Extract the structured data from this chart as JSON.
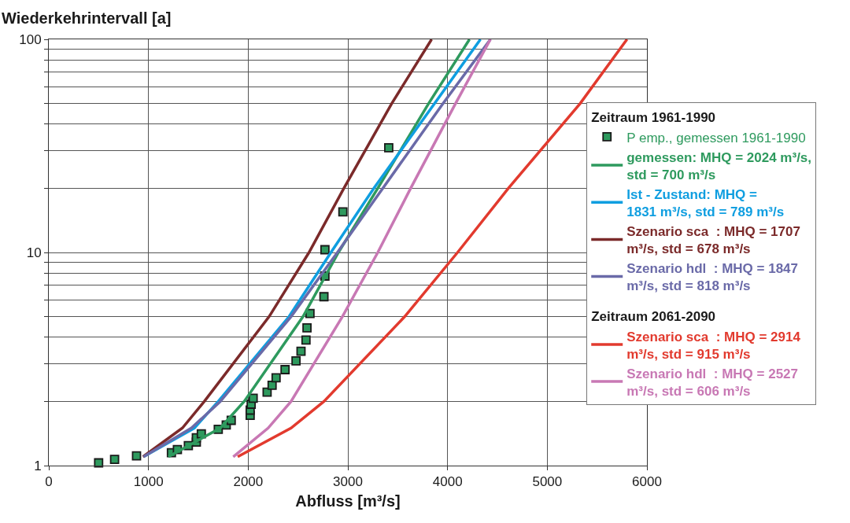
{
  "chart_data": {
    "type": "line",
    "ylabel": "Wiederkehrintervall [a]",
    "xlabel": "Abfluss [m³/s]",
    "legend_title": "Zeitraum 1961-1990",
    "xlim": [
      0,
      6000
    ],
    "xticks": [
      0,
      1000,
      2000,
      3000,
      4000,
      5000,
      6000
    ],
    "ylim": [
      1,
      100
    ],
    "log": "y",
    "yticks": [
      1,
      {
        "value": 2,
        "label": null
      },
      {
        "value": 3,
        "label": null
      },
      {
        "value": 4,
        "label": null
      },
      {
        "value": 5,
        "label": null
      },
      {
        "value": 6,
        "label": null
      },
      {
        "value": 7,
        "label": null
      },
      {
        "value": 8,
        "label": null
      },
      {
        "value": 9,
        "label": null
      },
      10,
      {
        "value": 20,
        "label": null
      },
      {
        "value": 30,
        "label": null
      },
      {
        "value": 40,
        "label": null
      },
      {
        "value": 50,
        "label": null
      },
      {
        "value": 60,
        "label": null
      },
      {
        "value": 70,
        "label": null
      },
      {
        "value": 80,
        "label": null
      },
      {
        "value": 90,
        "label": null
      },
      100
    ],
    "grid": true,
    "legend": "right",
    "annotations": [
      "Zeitraum 2061-2090"
    ],
    "series": [
      {
        "name": "P emp., gemessen 1961-1990",
        "type": "scatter",
        "marker": "square",
        "color": "#2e9a5e",
        "x": [
          500,
          660,
          880,
          1230,
          1290,
          1400,
          1480,
          1480,
          1530,
          1700,
          1780,
          1830,
          2020,
          2020,
          2030,
          2050,
          2190,
          2240,
          2280,
          2370,
          2480,
          2530,
          2580,
          2590,
          2620,
          2760,
          2770,
          2770,
          2950,
          3410
        ],
        "values": [
          1.03,
          1.07,
          1.11,
          1.15,
          1.19,
          1.24,
          1.29,
          1.35,
          1.41,
          1.48,
          1.55,
          1.63,
          1.72,
          1.82,
          1.94,
          2.07,
          2.21,
          2.38,
          2.58,
          2.82,
          3.1,
          3.44,
          3.88,
          4.43,
          5.17,
          6.2,
          7.75,
          10.3,
          15.5,
          31
        ]
      },
      {
        "name": "gemessen: MHQ = 2024 m³/s,\nstd = 700 m³/s",
        "color": "#2e9a5e",
        "x": [
          1200,
          1720,
          1960,
          2550,
          2905,
          3300,
          3810,
          4220
        ],
        "values": [
          1.1,
          1.5,
          2,
          5,
          10,
          20,
          50,
          100
        ]
      },
      {
        "name": "Ist - Zustand: MHQ =\n1831 m³/s, std = 789 m³/s",
        "color": "#0f9ee0",
        "x": [
          950,
          1460,
          1700,
          2410,
          2830,
          3260,
          3870,
          4330
        ],
        "values": [
          1.1,
          1.5,
          2,
          5,
          10,
          20,
          50,
          100
        ]
      },
      {
        "name": "Szenario sca  : MHQ = 1707\nm³/s, std = 678 m³/s",
        "color": "#7b2a2a",
        "x": [
          945,
          1340,
          1560,
          2210,
          2610,
          2960,
          3440,
          3840
        ],
        "values": [
          1.1,
          1.5,
          2,
          5,
          10,
          20,
          50,
          100
        ]
      },
      {
        "name": "Szenario hdl  : MHQ = 1847\nm³/s, std = 818 m³/s",
        "color": "#6a6aa8",
        "x": [
          950,
          1430,
          1720,
          2430,
          2895,
          3350,
          3955,
          4430
        ],
        "values": [
          1.1,
          1.5,
          2,
          5,
          10,
          20,
          50,
          100
        ]
      },
      {
        "name": "Szenario sca  : MHQ = 2914\nm³/s, std = 915 m³/s",
        "color": "#e23a2e",
        "x": [
          1895,
          2430,
          2760,
          3570,
          4100,
          4610,
          5330,
          5800
        ],
        "values": [
          1.1,
          1.5,
          2,
          5,
          10,
          20,
          50,
          100
        ]
      },
      {
        "name": "Szenario hdl  : MHQ = 2527\nm³/s, std = 606 m³/s",
        "color": "#c878b4",
        "x": [
          1850,
          2200,
          2430,
          2945,
          3300,
          3630,
          4080,
          4430
        ],
        "values": [
          1.1,
          1.5,
          2,
          5,
          10,
          20,
          50,
          100
        ]
      }
    ]
  }
}
